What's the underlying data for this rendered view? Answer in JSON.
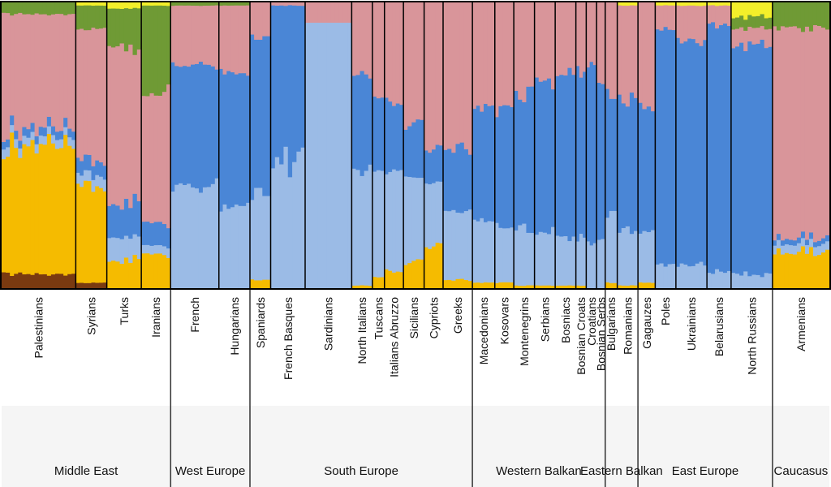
{
  "chart_data": {
    "type": "stacked-bar",
    "title": "",
    "xlabel": "",
    "ylabel": "",
    "ylim": [
      0,
      1
    ],
    "grid": false,
    "components": [
      {
        "color": "#7a3a10"
      },
      {
        "color": "#f5bb00"
      },
      {
        "color": "#9bbbe6"
      },
      {
        "color": "#4a86d6"
      },
      {
        "color": "#d9959a"
      },
      {
        "color": "#6f9a35"
      },
      {
        "color": "#f3ef2a"
      }
    ],
    "populations": [
      {
        "name": "Palestinians",
        "weight": 4.3,
        "values": [
          0.05,
          0.45,
          0.03,
          0.03,
          0.4,
          0.04,
          0.0
        ]
      },
      {
        "name": "Syrians",
        "weight": 1.8,
        "values": [
          0.02,
          0.33,
          0.04,
          0.05,
          0.47,
          0.08,
          0.01
        ]
      },
      {
        "name": "Turks",
        "weight": 2.0,
        "values": [
          0.0,
          0.1,
          0.08,
          0.12,
          0.54,
          0.14,
          0.02
        ]
      },
      {
        "name": "Iranians",
        "weight": 1.7,
        "values": [
          0.0,
          0.12,
          0.03,
          0.08,
          0.45,
          0.31,
          0.01
        ]
      },
      {
        "name": "French",
        "weight": 2.8,
        "values": [
          0.0,
          0.0,
          0.36,
          0.42,
          0.21,
          0.01,
          0.0
        ]
      },
      {
        "name": "Hungarians",
        "weight": 1.8,
        "values": [
          0.0,
          0.0,
          0.28,
          0.48,
          0.23,
          0.01,
          0.0
        ]
      },
      {
        "name": "Spaniards",
        "weight": 1.2,
        "values": [
          0.0,
          0.03,
          0.3,
          0.55,
          0.12,
          0.0,
          0.0
        ]
      },
      {
        "name": "French Basques",
        "weight": 2.0,
        "values": [
          0.0,
          0.0,
          0.45,
          0.54,
          0.01,
          0.0,
          0.0
        ]
      },
      {
        "name": "Sardinians",
        "weight": 2.7,
        "values": [
          0.0,
          0.0,
          0.93,
          0.0,
          0.07,
          0.0,
          0.0
        ]
      },
      {
        "name": "North Italians",
        "weight": 1.2,
        "values": [
          0.0,
          0.01,
          0.4,
          0.33,
          0.25,
          0.0,
          0.0
        ]
      },
      {
        "name": "Tuscans",
        "weight": 0.7,
        "values": [
          0.0,
          0.04,
          0.37,
          0.26,
          0.33,
          0.0,
          0.0
        ]
      },
      {
        "name": "Italians Abruzzo",
        "weight": 1.1,
        "values": [
          0.0,
          0.06,
          0.35,
          0.24,
          0.35,
          0.0,
          0.0
        ]
      },
      {
        "name": "Sicilians",
        "weight": 1.2,
        "values": [
          0.0,
          0.09,
          0.3,
          0.18,
          0.43,
          0.0,
          0.0
        ]
      },
      {
        "name": "Cypriots",
        "weight": 1.1,
        "values": [
          0.0,
          0.15,
          0.22,
          0.12,
          0.51,
          0.0,
          0.0
        ]
      },
      {
        "name": "Greeks",
        "weight": 1.7,
        "values": [
          0.0,
          0.03,
          0.24,
          0.22,
          0.51,
          0.0,
          0.0
        ]
      },
      {
        "name": "Macedonians",
        "weight": 1.3,
        "values": [
          0.0,
          0.02,
          0.22,
          0.39,
          0.37,
          0.0,
          0.0
        ]
      },
      {
        "name": "Kosovars",
        "weight": 1.1,
        "values": [
          0.0,
          0.02,
          0.2,
          0.4,
          0.38,
          0.0,
          0.0
        ]
      },
      {
        "name": "Montenegrins",
        "weight": 1.2,
        "values": [
          0.0,
          0.01,
          0.2,
          0.47,
          0.32,
          0.0,
          0.0
        ]
      },
      {
        "name": "Serbians",
        "weight": 1.2,
        "values": [
          0.0,
          0.01,
          0.19,
          0.52,
          0.28,
          0.0,
          0.0
        ]
      },
      {
        "name": "Bosniacs",
        "weight": 1.2,
        "values": [
          0.0,
          0.01,
          0.17,
          0.57,
          0.25,
          0.0,
          0.0
        ]
      },
      {
        "name": "Bosnian Croats",
        "weight": 0.6,
        "values": [
          0.0,
          0.01,
          0.16,
          0.6,
          0.23,
          0.0,
          0.0
        ]
      },
      {
        "name": "Croatians",
        "weight": 0.6,
        "values": [
          0.0,
          0.0,
          0.16,
          0.62,
          0.22,
          0.0,
          0.0
        ]
      },
      {
        "name": "Bosnian Serbs",
        "weight": 0.5,
        "values": [
          0.0,
          0.0,
          0.17,
          0.55,
          0.28,
          0.0,
          0.0
        ]
      },
      {
        "name": "Bulgarians",
        "weight": 0.7,
        "values": [
          0.0,
          0.02,
          0.24,
          0.42,
          0.32,
          0.0,
          0.0
        ]
      },
      {
        "name": "Romanians",
        "weight": 1.2,
        "values": [
          0.0,
          0.01,
          0.2,
          0.44,
          0.34,
          0.0,
          0.01
        ]
      },
      {
        "name": "Gagauzes",
        "weight": 1.0,
        "values": [
          0.0,
          0.02,
          0.18,
          0.43,
          0.37,
          0.0,
          0.0
        ]
      },
      {
        "name": "Poles",
        "weight": 1.2,
        "values": [
          0.0,
          0.0,
          0.09,
          0.81,
          0.09,
          0.0,
          0.01
        ]
      },
      {
        "name": "Ukrainians",
        "weight": 1.8,
        "values": [
          0.0,
          0.0,
          0.08,
          0.79,
          0.12,
          0.0,
          0.01
        ]
      },
      {
        "name": "Belarusians",
        "weight": 1.4,
        "values": [
          0.0,
          0.0,
          0.06,
          0.86,
          0.07,
          0.0,
          0.01
        ]
      },
      {
        "name": "North Russians",
        "weight": 2.4,
        "values": [
          0.0,
          0.0,
          0.05,
          0.8,
          0.06,
          0.04,
          0.05
        ]
      },
      {
        "name": "Armenians",
        "weight": 3.3,
        "values": [
          0.0,
          0.13,
          0.03,
          0.02,
          0.73,
          0.09,
          0.0
        ]
      }
    ],
    "regions": [
      {
        "name": "Middle East",
        "from": 0,
        "to": 3
      },
      {
        "name": "West Europe",
        "from": 4,
        "to": 5
      },
      {
        "name": "South Europe",
        "from": 6,
        "to": 14
      },
      {
        "name": "Western Balkan",
        "from": 15,
        "to": 22
      },
      {
        "name": "Eastern Balkan",
        "from": 23,
        "to": 24
      },
      {
        "name": "East Europe",
        "from": 25,
        "to": 29
      },
      {
        "name": "Caucasus",
        "from": 30,
        "to": 30
      }
    ]
  }
}
